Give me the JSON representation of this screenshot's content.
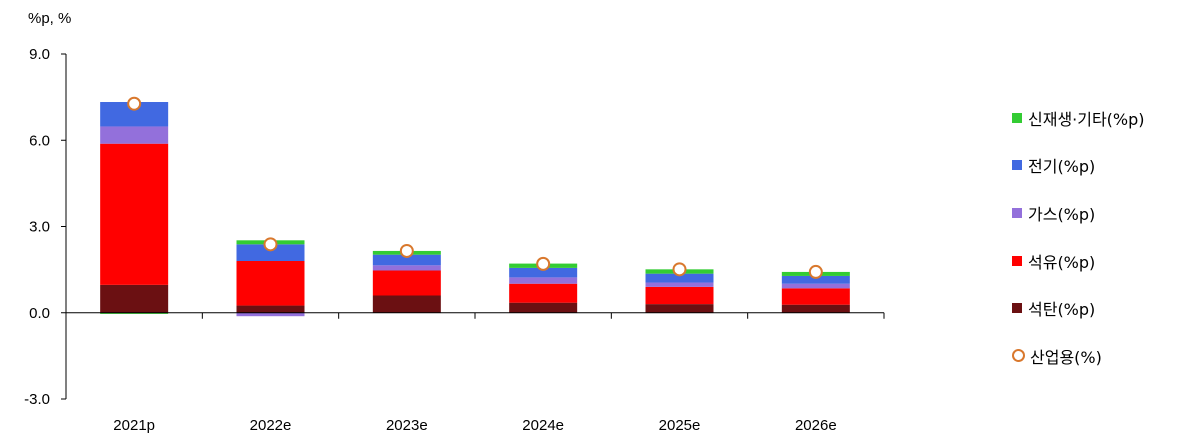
{
  "chart_data": {
    "type": "bar",
    "stacked": true,
    "unit_label": "%p, %",
    "categories": [
      "2021p",
      "2022e",
      "2023e",
      "2024e",
      "2025e",
      "2026e"
    ],
    "ylim": [
      -3.0,
      9.0
    ],
    "yticks": [
      "9.0",
      "6.0",
      "3.0",
      "0.0",
      "-3.0"
    ],
    "series": [
      {
        "name": "석탄(%p)",
        "type": "bar",
        "color": "#6B1012",
        "values": [
          0.97,
          0.25,
          0.6,
          0.35,
          0.3,
          0.28
        ]
      },
      {
        "name": "석유(%p)",
        "type": "bar",
        "color": "#FF0000",
        "values": [
          4.91,
          1.55,
          0.87,
          0.66,
          0.6,
          0.57
        ]
      },
      {
        "name": "가스(%p)",
        "type": "bar",
        "color": "#9370DB",
        "values": [
          0.6,
          -0.12,
          0.18,
          0.22,
          0.15,
          0.16
        ]
      },
      {
        "name": "전기(%p)",
        "type": "bar",
        "color": "#4169E1",
        "values": [
          0.85,
          0.58,
          0.37,
          0.33,
          0.31,
          0.27
        ]
      },
      {
        "name": "신재생·기타(%p)",
        "type": "bar",
        "color": "#33CC33",
        "values": [
          -0.04,
          0.14,
          0.13,
          0.15,
          0.15,
          0.14
        ]
      },
      {
        "name": "산업용(%)",
        "type": "marker",
        "color": "#D9782D",
        "values": [
          7.27,
          2.38,
          2.15,
          1.7,
          1.51,
          1.42
        ]
      }
    ],
    "legend": {
      "position": "right",
      "order": [
        "신재생·기타(%p)",
        "전기(%p)",
        "가스(%p)",
        "석유(%p)",
        "석탄(%p)",
        "산업용(%)"
      ]
    },
    "grid": false
  }
}
